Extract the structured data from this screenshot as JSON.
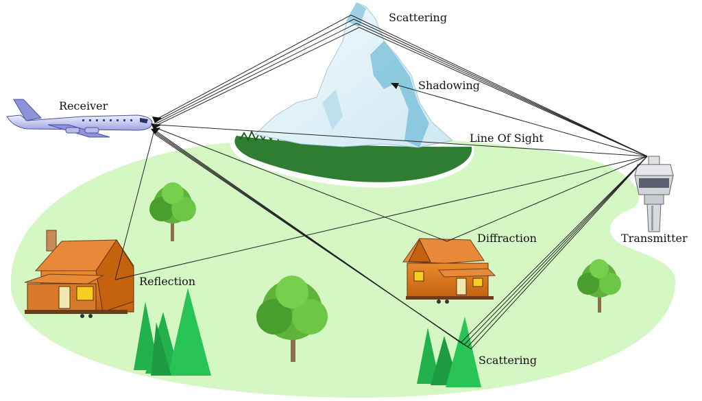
{
  "labels": {
    "scattering_top": "Scattering",
    "shadowing": "Shadowing",
    "receiver": "Receiver",
    "line_of_sight": "Line Of Sight",
    "transmitter": "Transmitter",
    "diffraction": "Diffraction",
    "reflection": "Reflection",
    "scattering_bottom": "Scattering"
  },
  "colors": {
    "ground": "#d4f7c4",
    "forest": "#2e7d32",
    "snow": "#e8f4fa",
    "ice": "#7fc3dc",
    "tree_leaf": "#5fb33a",
    "pine": "#22b14c",
    "house_wall": "#e07a1f",
    "roof": "#e8893a",
    "plane_body": "#c9ccf0",
    "ray": "#222222"
  },
  "icons": [
    "airplane-icon",
    "control-tower-icon",
    "mountain-icon",
    "house-icon",
    "tree-icon",
    "pine-trees-icon"
  ]
}
